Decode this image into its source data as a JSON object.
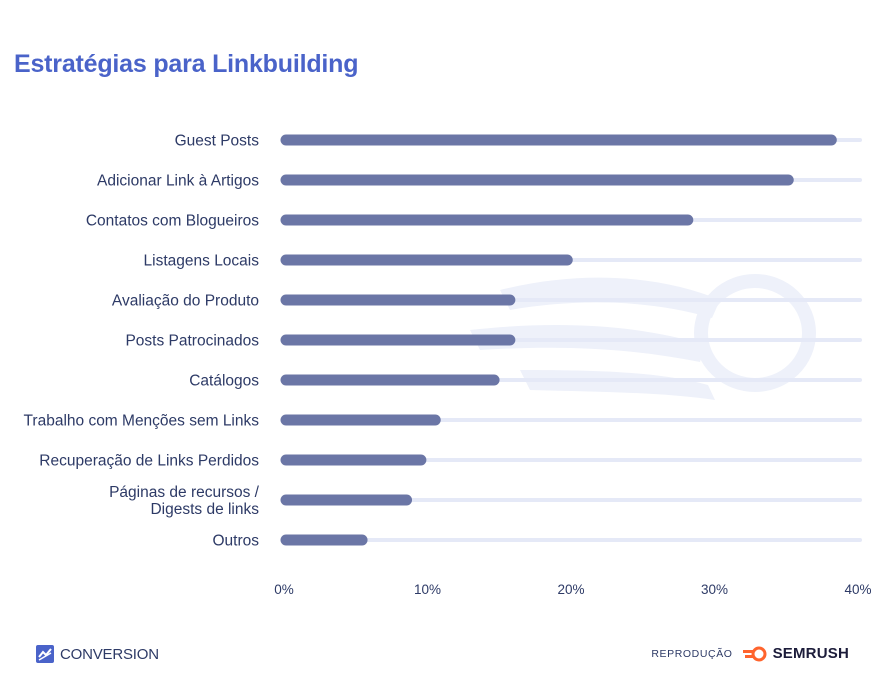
{
  "colors": {
    "title": "#4a63c9",
    "bar": "#6b76a6",
    "track": "#e5e9f7",
    "text": "#2d3a66",
    "watermark": "#eef1fa",
    "semrush_orange": "#ff642d"
  },
  "chart_data": {
    "type": "bar",
    "orientation": "horizontal",
    "title": "Estratégias para Linkbuilding",
    "categories": [
      [
        "Guest Posts"
      ],
      [
        "Adicionar Link à Artigos"
      ],
      [
        "Contatos com Blogueiros"
      ],
      [
        "Listagens Locais"
      ],
      [
        "Avaliação do Produto"
      ],
      [
        "Posts Patrocinados"
      ],
      [
        "Catálogos"
      ],
      [
        "Trabalho com Menções sem Links"
      ],
      [
        "Recuperação de Links Perdidos"
      ],
      [
        "Páginas de recursos /",
        "Digests de links"
      ],
      [
        "Outros"
      ]
    ],
    "values": [
      38,
      35,
      28,
      19.6,
      15.6,
      15.6,
      14.5,
      10.4,
      9.4,
      8.4,
      5.3
    ],
    "xlim": [
      0,
      40
    ],
    "xticks": [
      "0%",
      "10%",
      "20%",
      "30%",
      "40%"
    ],
    "xlabel": "",
    "ylabel": ""
  },
  "footer": {
    "brand_left": "CONVERSION",
    "logo_left_icon": "conversion-logo-icon",
    "reproduction_label": "REPRODUÇÃO",
    "brand_right": "SEMRUSH",
    "logo_right_icon": "semrush-fire-icon"
  }
}
